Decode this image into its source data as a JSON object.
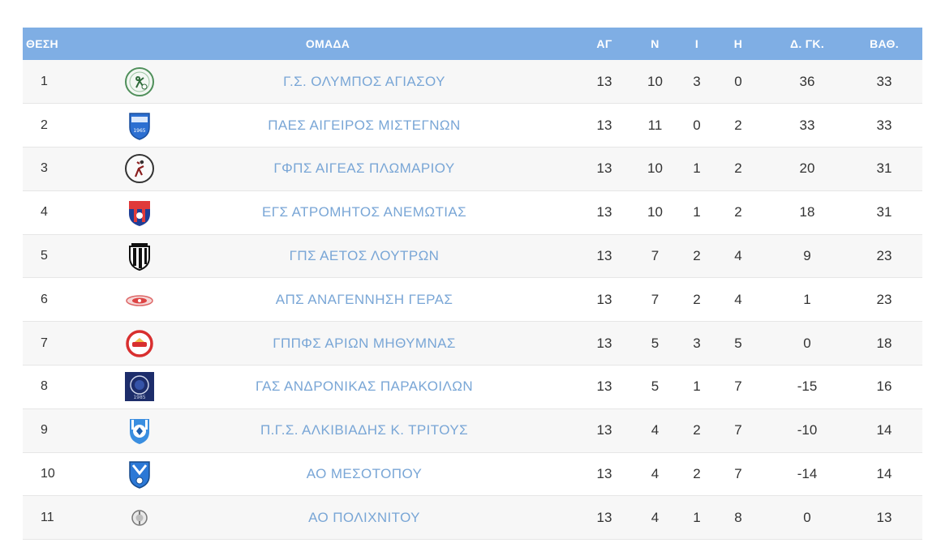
{
  "table": {
    "headers": {
      "position": "ΘΕΣΗ",
      "team": "ΟΜΑΔΑ",
      "played": "ΑΓ",
      "wins": "Ν",
      "draws": "Ι",
      "losses": "Η",
      "goal_diff": "Δ. ΓΚ.",
      "points": "ΒΑΘ."
    },
    "rows": [
      {
        "pos": "1",
        "team": "Γ.Σ. ΟΛΥΜΠΟΣ ΑΓΙΑΣΟΥ",
        "played": "13",
        "wins": "10",
        "draws": "3",
        "losses": "0",
        "gd": "36",
        "pts": "33",
        "logo": "olympos-agiasou-logo"
      },
      {
        "pos": "2",
        "team": "ΠΑΕΣ ΑΙΓΕΙΡΟΣ ΜΙΣΤΕΓΝΩΝ",
        "played": "13",
        "wins": "11",
        "draws": "0",
        "losses": "2",
        "gd": "33",
        "pts": "33",
        "logo": "aigeiros-mistegnon-logo"
      },
      {
        "pos": "3",
        "team": "ΓΦΠΣ ΑΙΓΕΑΣ ΠΛΩΜΑΡΙΟΥ",
        "played": "13",
        "wins": "10",
        "draws": "1",
        "losses": "2",
        "gd": "20",
        "pts": "31",
        "logo": "aigeas-plomariou-logo"
      },
      {
        "pos": "4",
        "team": "ΕΓΣ ΑΤΡΟΜΗΤΟΣ ΑΝΕΜΩΤΙΑΣ",
        "played": "13",
        "wins": "10",
        "draws": "1",
        "losses": "2",
        "gd": "18",
        "pts": "31",
        "logo": "atromitos-anemotias-logo"
      },
      {
        "pos": "5",
        "team": "ΓΠΣ ΑΕΤΟΣ ΛΟΥΤΡΩΝ",
        "played": "13",
        "wins": "7",
        "draws": "2",
        "losses": "4",
        "gd": "9",
        "pts": "23",
        "logo": "aetos-loutron-logo"
      },
      {
        "pos": "6",
        "team": "ΑΠΣ ΑΝΑΓΕΝΝΗΣΗ ΓΕΡΑΣ",
        "played": "13",
        "wins": "7",
        "draws": "2",
        "losses": "4",
        "gd": "1",
        "pts": "23",
        "logo": "anagennisi-geras-logo"
      },
      {
        "pos": "7",
        "team": "ΓΠΠΦΣ ΑΡΙΩΝ ΜΗΘΥΜΝΑΣ",
        "played": "13",
        "wins": "5",
        "draws": "3",
        "losses": "5",
        "gd": "0",
        "pts": "18",
        "logo": "arion-mithymnas-logo"
      },
      {
        "pos": "8",
        "team": "ΓΑΣ ΑΝΔΡΟΝΙΚΑΣ ΠΑΡΑΚΟΙΛΩΝ",
        "played": "13",
        "wins": "5",
        "draws": "1",
        "losses": "7",
        "gd": "-15",
        "pts": "16",
        "logo": "andronikas-parakoilon-logo"
      },
      {
        "pos": "9",
        "team": "Π.Γ.Σ. ΑΛΚΙΒΙΑΔΗΣ Κ. ΤΡΙΤΟΥΣ",
        "played": "13",
        "wins": "4",
        "draws": "2",
        "losses": "7",
        "gd": "-10",
        "pts": "14",
        "logo": "alkiviadis-tritous-logo"
      },
      {
        "pos": "10",
        "team": "ΑΟ ΜΕΣΟΤΟΠΟΥ",
        "played": "13",
        "wins": "4",
        "draws": "2",
        "losses": "7",
        "gd": "-14",
        "pts": "14",
        "logo": "mesotopou-logo"
      },
      {
        "pos": "11",
        "team": "ΑΟ ΠΟΛΙΧΝΙΤΟΥ",
        "played": "13",
        "wins": "4",
        "draws": "1",
        "losses": "8",
        "gd": "0",
        "pts": "13",
        "logo": "polichnitou-logo"
      }
    ]
  },
  "colors": {
    "header_bg": "#7faee4",
    "header_text": "#ffffff",
    "team_link": "#79a6d6",
    "row_alt": "#f7f7f7",
    "text": "#333333"
  }
}
